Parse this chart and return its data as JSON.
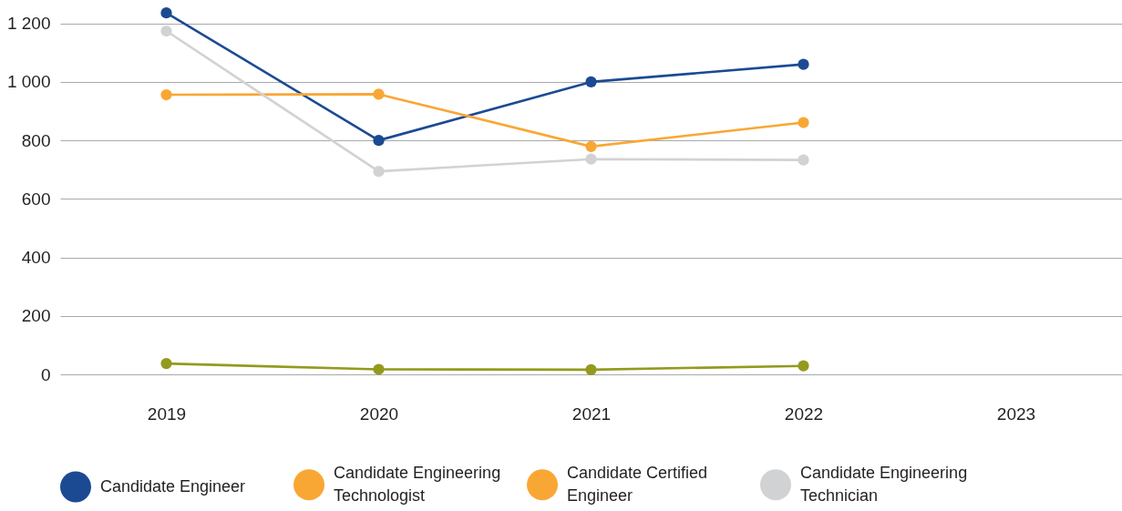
{
  "chart_data": {
    "type": "line",
    "categories": [
      "2019",
      "2020",
      "2021",
      "2022",
      "2023"
    ],
    "series": [
      {
        "name": "Candidate Engineer",
        "color": "#1b4a93",
        "values": [
          1236,
          800,
          1000,
          1060,
          null
        ]
      },
      {
        "name": "Candidate Engineering Technologist",
        "color": "#f9a734",
        "values": [
          956,
          958,
          779,
          861,
          null
        ]
      },
      {
        "name": "Candidate Certified Engineer",
        "color": "#f9a734",
        "values": [
          null,
          null,
          null,
          null,
          null
        ]
      },
      {
        "name": "Candidate Engineering Technician",
        "color": "#d1d2d4",
        "values": [
          1174,
          694,
          736,
          733,
          null
        ]
      },
      {
        "color": "#939a1d",
        "values": [
          37,
          17,
          16,
          29,
          null
        ]
      }
    ],
    "ylim": [
      0,
      1280
    ],
    "yticks": [
      0,
      200,
      400,
      600,
      800,
      {
        "value": 1000,
        "label": "1 000"
      },
      {
        "value": 1200,
        "label": "1 200"
      }
    ],
    "grid": "y",
    "legend": "bottom",
    "marker": "circle",
    "line_style": "solid"
  }
}
